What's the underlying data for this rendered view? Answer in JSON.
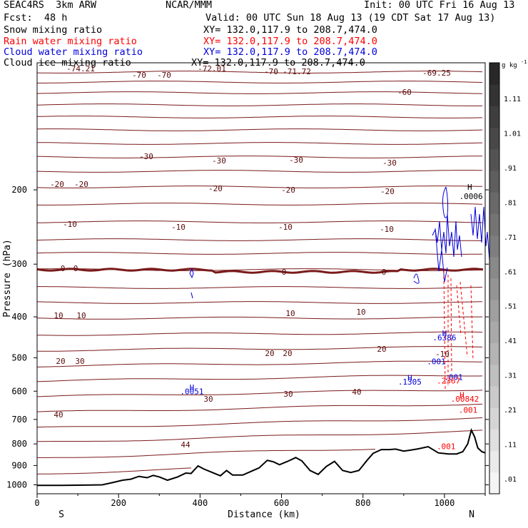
{
  "header": {
    "model": "SEAC4RS  3km ARW",
    "center": "NCAR/MMM",
    "init": "Init: 00 UTC Fri 16 Aug 13",
    "fcst": "Fcst:  48 h",
    "valid": "Valid: 00 UTC Sun 18 Aug 13 (19 CDT Sat 17 Aug 13)",
    "fields": [
      {
        "name": "Snow mixing ratio",
        "xy": "XY= 132.0,117.9 to 208.7,474.0",
        "color": "#000000"
      },
      {
        "name": "Rain water mixing ratio",
        "xy": "XY= 132.0,117.9 to 208.7,474.0",
        "color": "#ff0000"
      },
      {
        "name": "Cloud water mixing ratio",
        "xy": "XY= 132.0,117.9 to 208.7,474.0",
        "color": "#0000dd"
      },
      {
        "name": "Cloud ice mixing ratio",
        "xy": "XY= 132.0,117.9 to 208.7,474.0",
        "color": "#000000"
      }
    ]
  },
  "chart_data": {
    "type": "cross-section",
    "xlabel": "Distance (km)",
    "ylabel": "Pressure (hPa)",
    "xlim": [
      0,
      1100
    ],
    "ylim": [
      1050,
      100
    ],
    "y_scale": "log",
    "x_ticks": [
      0,
      200,
      400,
      600,
      800,
      1000
    ],
    "y_ticks": [
      200,
      300,
      400,
      500,
      600,
      700,
      800,
      900,
      1000
    ],
    "endpoint_labels": {
      "left": "S",
      "right": "N"
    },
    "colorbar": {
      "unit": "g kg",
      "unit_superscript": "-1",
      "levels": [
        ".01",
        ".11",
        ".21",
        ".31",
        ".41",
        ".51",
        ".61",
        ".71",
        ".81",
        ".91",
        "1.01",
        "1.11"
      ]
    },
    "temperature_contours_label_values": [
      "-74.21",
      "-72.01",
      "-71.72",
      "-69.25",
      "-70",
      "-70",
      "-70",
      "-60",
      "-30",
      "-30",
      "-30",
      "-30",
      "-20",
      "-20",
      "-20",
      "-20",
      "-20",
      "-10",
      "-10",
      "-10",
      "-10",
      "-10",
      "0",
      "0",
      "0",
      "0",
      "10",
      "10",
      "10",
      "10",
      "20",
      "20",
      "20",
      "20",
      "30",
      "30",
      "30",
      "40",
      "40",
      "44"
    ],
    "terrain": [
      {
        "x": 0,
        "p": 1003
      },
      {
        "x": 60,
        "p": 1003
      },
      {
        "x": 160,
        "p": 1000
      },
      {
        "x": 185,
        "p": 988
      },
      {
        "x": 210,
        "p": 975
      },
      {
        "x": 230,
        "p": 970
      },
      {
        "x": 250,
        "p": 955
      },
      {
        "x": 270,
        "p": 962
      },
      {
        "x": 285,
        "p": 950
      },
      {
        "x": 300,
        "p": 958
      },
      {
        "x": 320,
        "p": 975
      },
      {
        "x": 345,
        "p": 958
      },
      {
        "x": 365,
        "p": 938
      },
      {
        "x": 378,
        "p": 940
      },
      {
        "x": 395,
        "p": 902
      },
      {
        "x": 410,
        "p": 918
      },
      {
        "x": 430,
        "p": 935
      },
      {
        "x": 450,
        "p": 952
      },
      {
        "x": 465,
        "p": 925
      },
      {
        "x": 480,
        "p": 948
      },
      {
        "x": 505,
        "p": 948
      },
      {
        "x": 530,
        "p": 925
      },
      {
        "x": 545,
        "p": 912
      },
      {
        "x": 565,
        "p": 875
      },
      {
        "x": 580,
        "p": 882
      },
      {
        "x": 595,
        "p": 896
      },
      {
        "x": 615,
        "p": 880
      },
      {
        "x": 635,
        "p": 862
      },
      {
        "x": 650,
        "p": 878
      },
      {
        "x": 670,
        "p": 925
      },
      {
        "x": 690,
        "p": 945
      },
      {
        "x": 710,
        "p": 905
      },
      {
        "x": 730,
        "p": 880
      },
      {
        "x": 750,
        "p": 925
      },
      {
        "x": 770,
        "p": 935
      },
      {
        "x": 790,
        "p": 925
      },
      {
        "x": 810,
        "p": 875
      },
      {
        "x": 825,
        "p": 842
      },
      {
        "x": 845,
        "p": 825
      },
      {
        "x": 865,
        "p": 825
      },
      {
        "x": 880,
        "p": 823
      },
      {
        "x": 900,
        "p": 832
      },
      {
        "x": 915,
        "p": 828
      },
      {
        "x": 935,
        "p": 822
      },
      {
        "x": 960,
        "p": 812
      },
      {
        "x": 985,
        "p": 840
      },
      {
        "x": 1010,
        "p": 845
      },
      {
        "x": 1030,
        "p": 845
      },
      {
        "x": 1045,
        "p": 835
      },
      {
        "x": 1057,
        "p": 800
      },
      {
        "x": 1066,
        "p": 742
      },
      {
        "x": 1074,
        "p": 770
      },
      {
        "x": 1082,
        "p": 818
      },
      {
        "x": 1092,
        "p": 835
      },
      {
        "x": 1100,
        "p": 840
      }
    ],
    "annotations": [
      {
        "text": "H",
        "color": "#0000dd",
        "x": 380,
        "p": 588
      },
      {
        "text": ".0051",
        "color": "#0000dd",
        "x": 380,
        "p": 601
      },
      {
        "text": "H",
        "color": "#0000dd",
        "x": 915,
        "p": 558
      },
      {
        "text": ".1305",
        "color": "#0000dd",
        "x": 915,
        "p": 570
      },
      {
        "text": "H",
        "color": "#0000dd",
        "x": 1000,
        "p": 437
      },
      {
        "text": ".6386",
        "color": "#0000dd",
        "x": 1000,
        "p": 448
      },
      {
        "text": ".001",
        "color": "#0000dd",
        "x": 980,
        "p": 510
      },
      {
        "text": ".001",
        "color": "#0000dd",
        "x": 1022,
        "p": 556
      },
      {
        "text": ".2367",
        "color": "#ff0000",
        "x": 1010,
        "p": 566
      },
      {
        "text": "H",
        "color": "#ff0000",
        "x": 1043,
        "p": 612
      },
      {
        "text": ".00842",
        "color": "#ff0000",
        "x": 1050,
        "p": 626
      },
      {
        "text": ".001",
        "color": "#ff0000",
        "x": 1058,
        "p": 665
      },
      {
        "text": ".001",
        "color": "#ff0000",
        "x": 1004,
        "p": 810
      },
      {
        "text": "H",
        "color": "#000000",
        "x": 1062,
        "p": 197
      },
      {
        "text": ".0006",
        "color": "#000000",
        "x": 1065,
        "p": 207
      }
    ]
  }
}
